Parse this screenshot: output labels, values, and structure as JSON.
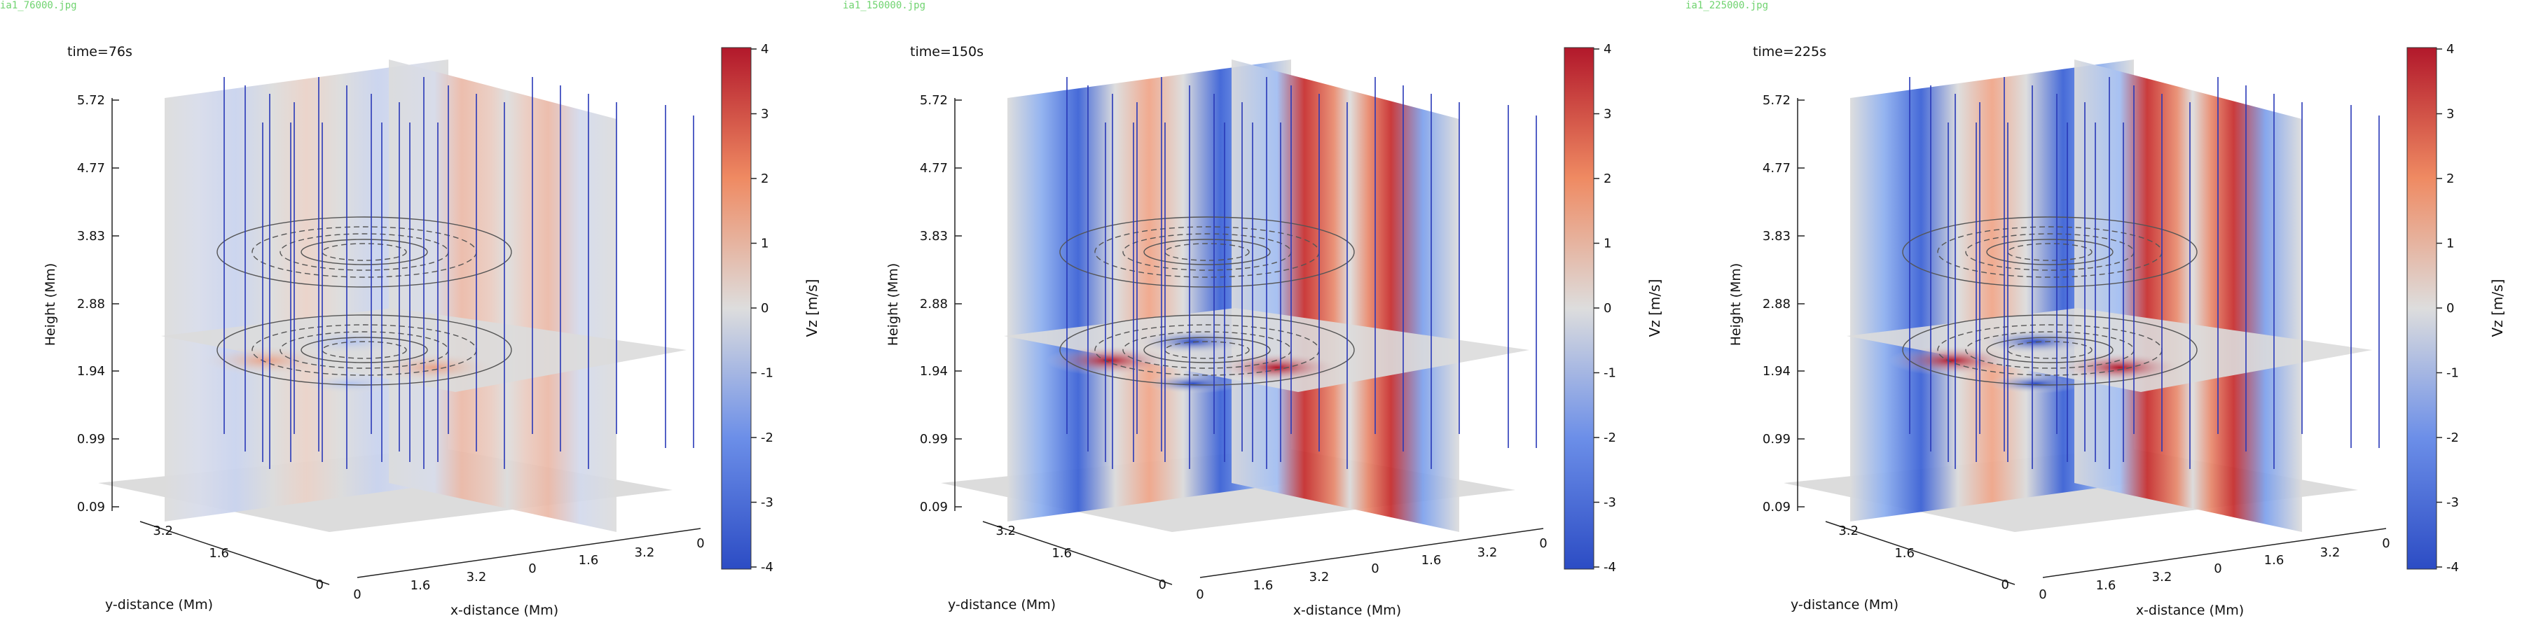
{
  "panels": [
    {
      "filename": "ia1_76000.jpg",
      "time_label": "time=76s",
      "intensity": 0.35
    },
    {
      "filename": "ia1_150000.jpg",
      "time_label": "time=150s",
      "intensity": 1.0
    },
    {
      "filename": "ia1_225000.jpg",
      "time_label": "time=225s",
      "intensity": 1.0
    }
  ],
  "axes": {
    "height_label": "Height (Mm)",
    "height_ticks": [
      "5.72",
      "4.77",
      "3.83",
      "2.88",
      "1.94",
      "0.99",
      "0.09"
    ],
    "y_label": "y-distance (Mm)",
    "y_ticks": [
      "3.2",
      "1.6",
      "0"
    ],
    "x_label": "x-distance (Mm)",
    "x_ticks": [
      "0",
      "1.6",
      "3.2",
      "0",
      "1.6",
      "3.2",
      "0"
    ]
  },
  "colorbar": {
    "label": "Vz [m/s]",
    "ticks": [
      "4",
      "3",
      "2",
      "1",
      "0",
      "-1",
      "-2",
      "-3",
      "-4"
    ],
    "colors": {
      "max": "#b2182b",
      "mid": "#dddddd",
      "min": "#2c4cc4"
    }
  }
}
